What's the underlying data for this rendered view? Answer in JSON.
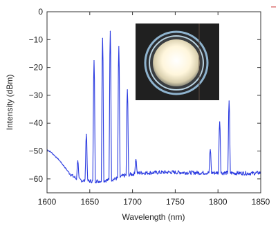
{
  "chart_data": {
    "type": "line",
    "title": "",
    "xlabel": "Wavelength (nm)",
    "ylabel": "Intensity (dBm)",
    "xlim": [
      1600,
      1850
    ],
    "ylim": [
      -65,
      0
    ],
    "x_ticks": [
      1600,
      1650,
      1700,
      1750,
      1800,
      1850
    ],
    "y_ticks": [
      0,
      -10,
      -20,
      -30,
      -40,
      -50,
      -60
    ],
    "grid": false,
    "line_color": "#2b3be0",
    "baseline": [
      [
        1600,
        -49.5
      ],
      [
        1605,
        -50.5
      ],
      [
        1610,
        -52
      ],
      [
        1615,
        -53.5
      ],
      [
        1620,
        -55.5
      ],
      [
        1625,
        -57.5
      ],
      [
        1630,
        -59
      ],
      [
        1635,
        -60
      ],
      [
        1640,
        -60.5
      ],
      [
        1650,
        -60.8
      ],
      [
        1660,
        -60.8
      ],
      [
        1670,
        -60.5
      ],
      [
        1680,
        -60
      ],
      [
        1690,
        -58.8
      ],
      [
        1700,
        -58.3
      ],
      [
        1710,
        -57.8
      ],
      [
        1720,
        -57.8
      ],
      [
        1740,
        -57.6
      ],
      [
        1760,
        -57.7
      ],
      [
        1780,
        -57.8
      ],
      [
        1800,
        -57.8
      ],
      [
        1820,
        -57.9
      ],
      [
        1840,
        -58
      ],
      [
        1850,
        -57.8
      ]
    ],
    "peaks": [
      {
        "x": 1636,
        "y": -53.5
      },
      {
        "x": 1646,
        "y": -44
      },
      {
        "x": 1655,
        "y": -17.5
      },
      {
        "x": 1665,
        "y": -9.5
      },
      {
        "x": 1674,
        "y": -7
      },
      {
        "x": 1684,
        "y": -12.5
      },
      {
        "x": 1694,
        "y": -28
      },
      {
        "x": 1704,
        "y": -53
      },
      {
        "x": 1791,
        "y": -49.5
      },
      {
        "x": 1802,
        "y": -39.5
      },
      {
        "x": 1813,
        "y": -32
      }
    ]
  },
  "inset": {
    "description_icon": "fiber-mode-image",
    "colors": {
      "background": "#202020",
      "ring": "#7ea6c4",
      "core": "#fffbe8"
    }
  }
}
